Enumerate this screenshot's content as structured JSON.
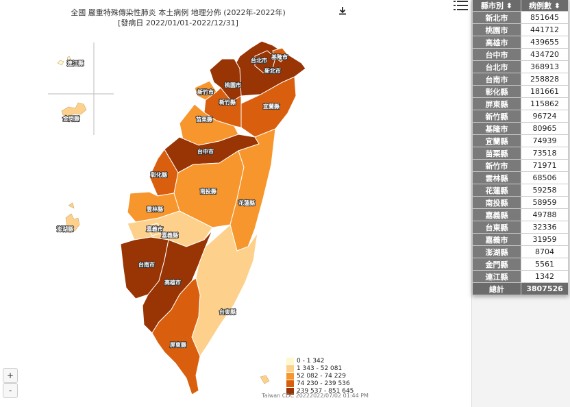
{
  "title": {
    "line1": "全國 嚴重特殊傳染性肺炎 本土病例 地理分佈 (2022年-2022年)",
    "line2": "[發病日 2022/01/01-2022/12/31]"
  },
  "icons": {
    "download": "download-icon",
    "menu": "hamburger-menu-icon"
  },
  "zoom": {
    "in": "+",
    "out": "-"
  },
  "legend": [
    {
      "label": "0 - 1 342",
      "color": "#fff7cf"
    },
    {
      "label": "1 343 - 52 081",
      "color": "#fdd18b"
    },
    {
      "label": "52 082 - 74 229",
      "color": "#f7962d"
    },
    {
      "label": "74 230 - 239 536",
      "color": "#d95f0e"
    },
    {
      "label": "239 537 - 851 645",
      "color": "#993404"
    }
  ],
  "credit": "Taiwan CDC 20222022/07/02 01:44 PM",
  "table": {
    "headers": [
      "縣市別",
      "病例數"
    ],
    "rows": [
      {
        "name": "新北市",
        "value": "851645"
      },
      {
        "name": "桃園市",
        "value": "441712"
      },
      {
        "name": "高雄市",
        "value": "439655"
      },
      {
        "name": "台中市",
        "value": "434720"
      },
      {
        "name": "台北市",
        "value": "368913"
      },
      {
        "name": "台南市",
        "value": "258828"
      },
      {
        "name": "彰化縣",
        "value": "181661"
      },
      {
        "name": "屏東縣",
        "value": "115862"
      },
      {
        "name": "新竹縣",
        "value": "96724"
      },
      {
        "name": "基隆市",
        "value": "80965"
      },
      {
        "name": "宜蘭縣",
        "value": "74939"
      },
      {
        "name": "苗栗縣",
        "value": "73518"
      },
      {
        "name": "新竹市",
        "value": "71971"
      },
      {
        "name": "雲林縣",
        "value": "68506"
      },
      {
        "name": "花蓮縣",
        "value": "59258"
      },
      {
        "name": "南投縣",
        "value": "58959"
      },
      {
        "name": "嘉義縣",
        "value": "49788"
      },
      {
        "name": "台東縣",
        "value": "32336"
      },
      {
        "name": "嘉義市",
        "value": "31959"
      },
      {
        "name": "澎湖縣",
        "value": "8704"
      },
      {
        "name": "金門縣",
        "value": "5561"
      },
      {
        "name": "連江縣",
        "value": "1342"
      }
    ],
    "total_label": "總計",
    "total_value": "3807526"
  },
  "map_labels": {
    "lienchiang": "連江縣",
    "kinmen": "金門縣",
    "penghu": "澎湖縣",
    "taipei": "台北市",
    "keelung": "基隆市",
    "newtaipei": "新北市",
    "taoyuan": "桃園市",
    "hsinchucity": "新竹市",
    "hsinchucounty": "新竹縣",
    "yilan": "宜蘭縣",
    "miaoli": "苗栗縣",
    "taichung": "台中市",
    "changhua": "彰化縣",
    "nantou": "南投縣",
    "hualien": "花蓮縣",
    "yunlin": "雲林縣",
    "chiayicity": "嘉義市",
    "chiayicounty": "嘉義縣",
    "tainan": "台南市",
    "kaohsiung": "高雄市",
    "taitung": "台東縣",
    "pingtung": "屏東縣"
  }
}
